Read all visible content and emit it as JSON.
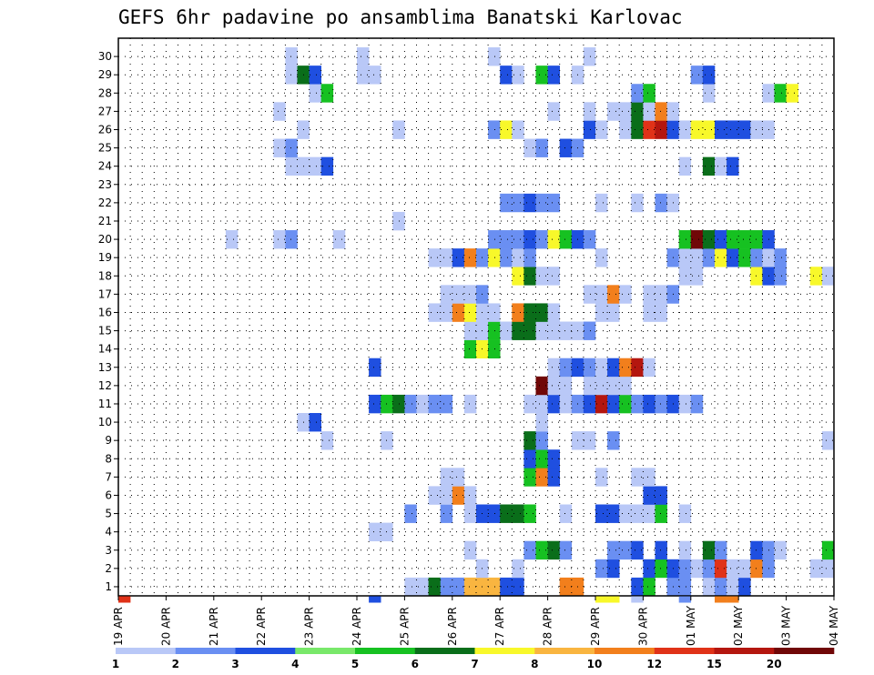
{
  "chart_data": {
    "type": "heatmap",
    "title": "GEFS 6hr padavine po ansamblima Banatski Karlovac",
    "xlabel": "",
    "ylabel": "",
    "x_tick_labels": [
      "19 APR",
      "20 APR",
      "21 APR",
      "22 APR",
      "23 APR",
      "24 APR",
      "25 APR",
      "26 APR",
      "27 APR",
      "28 APR",
      "29 APR",
      "30 APR",
      "01 MAY",
      "02 MAY",
      "03 MAY",
      "04 MAY"
    ],
    "y_tick_labels": [
      "1",
      "2",
      "3",
      "4",
      "5",
      "6",
      "7",
      "8",
      "9",
      "10",
      "11",
      "12",
      "13",
      "14",
      "15",
      "16",
      "17",
      "18",
      "19",
      "20",
      "21",
      "22",
      "23",
      "24",
      "25",
      "26",
      "27",
      "28",
      "29",
      "30"
    ],
    "steps_per_day": 4,
    "n_steps": 60,
    "grid": true,
    "colorbar": {
      "position": "bottom",
      "levels": [
        "1",
        "2",
        "3",
        "4",
        "5",
        "6",
        "7",
        "8",
        "10",
        "12",
        "15",
        "20"
      ],
      "colors": [
        "#b9c8f7",
        "#6a8ff2",
        "#1f4fe0",
        "#79e86a",
        "#16c121",
        "#0a6e1a",
        "#f8f82a",
        "#f9b540",
        "#f27f1c",
        "#e03218",
        "#b4160f",
        "#700707"
      ]
    },
    "values_note_units": "mm per 6h, color bin index 0-11",
    "cells": [
      [
        1,
        25,
        0
      ],
      [
        1,
        26,
        0
      ],
      [
        1,
        27,
        5
      ],
      [
        1,
        28,
        1
      ],
      [
        1,
        29,
        1
      ],
      [
        1,
        30,
        7
      ],
      [
        1,
        31,
        7
      ],
      [
        1,
        32,
        7
      ],
      [
        1,
        33,
        2
      ],
      [
        1,
        34,
        2
      ],
      [
        1,
        38,
        8
      ],
      [
        1,
        39,
        8
      ],
      [
        1,
        44,
        2
      ],
      [
        1,
        45,
        4
      ],
      [
        1,
        47,
        1
      ],
      [
        1,
        48,
        1
      ],
      [
        1,
        50,
        0
      ],
      [
        1,
        51,
        1
      ],
      [
        1,
        52,
        0
      ],
      [
        1,
        53,
        2
      ],
      [
        2,
        31,
        0
      ],
      [
        2,
        34,
        0
      ],
      [
        2,
        41,
        1
      ],
      [
        2,
        42,
        2
      ],
      [
        2,
        45,
        2
      ],
      [
        2,
        46,
        4
      ],
      [
        2,
        47,
        2
      ],
      [
        2,
        48,
        1
      ],
      [
        2,
        49,
        0
      ],
      [
        2,
        50,
        1
      ],
      [
        2,
        51,
        9
      ],
      [
        2,
        52,
        0
      ],
      [
        2,
        53,
        0
      ],
      [
        2,
        54,
        8
      ],
      [
        2,
        55,
        1
      ],
      [
        2,
        59,
        0
      ],
      [
        2,
        60,
        0
      ],
      [
        3,
        30,
        0
      ],
      [
        3,
        35,
        1
      ],
      [
        3,
        36,
        4
      ],
      [
        3,
        37,
        5
      ],
      [
        3,
        38,
        1
      ],
      [
        3,
        42,
        1
      ],
      [
        3,
        43,
        1
      ],
      [
        3,
        44,
        2
      ],
      [
        3,
        46,
        2
      ],
      [
        3,
        48,
        0
      ],
      [
        3,
        50,
        5
      ],
      [
        3,
        51,
        1
      ],
      [
        3,
        54,
        2
      ],
      [
        3,
        55,
        1
      ],
      [
        3,
        56,
        0
      ],
      [
        3,
        60,
        4
      ],
      [
        4,
        22,
        0
      ],
      [
        4,
        23,
        0
      ],
      [
        5,
        25,
        1
      ],
      [
        5,
        28,
        1
      ],
      [
        5,
        30,
        0
      ],
      [
        5,
        31,
        2
      ],
      [
        5,
        32,
        2
      ],
      [
        5,
        33,
        5
      ],
      [
        5,
        34,
        5
      ],
      [
        5,
        35,
        4
      ],
      [
        5,
        38,
        0
      ],
      [
        5,
        41,
        2
      ],
      [
        5,
        42,
        2
      ],
      [
        5,
        43,
        0
      ],
      [
        5,
        44,
        0
      ],
      [
        5,
        45,
        0
      ],
      [
        5,
        46,
        4
      ],
      [
        5,
        48,
        0
      ],
      [
        6,
        27,
        0
      ],
      [
        6,
        28,
        0
      ],
      [
        6,
        29,
        8
      ],
      [
        6,
        30,
        0
      ],
      [
        6,
        45,
        2
      ],
      [
        6,
        46,
        2
      ],
      [
        7,
        28,
        0
      ],
      [
        7,
        29,
        0
      ],
      [
        7,
        35,
        4
      ],
      [
        7,
        36,
        8
      ],
      [
        7,
        37,
        2
      ],
      [
        7,
        41,
        0
      ],
      [
        7,
        44,
        0
      ],
      [
        7,
        45,
        0
      ],
      [
        8,
        35,
        2
      ],
      [
        8,
        36,
        4
      ],
      [
        8,
        37,
        2
      ],
      [
        9,
        18,
        0
      ],
      [
        9,
        23,
        0
      ],
      [
        9,
        35,
        5
      ],
      [
        9,
        36,
        1
      ],
      [
        9,
        39,
        0
      ],
      [
        9,
        40,
        0
      ],
      [
        9,
        42,
        1
      ],
      [
        9,
        60,
        0
      ],
      [
        10,
        16,
        0
      ],
      [
        10,
        17,
        2
      ],
      [
        10,
        36,
        0
      ],
      [
        11,
        22,
        2
      ],
      [
        11,
        23,
        4
      ],
      [
        11,
        24,
        5
      ],
      [
        11,
        25,
        1
      ],
      [
        11,
        26,
        0
      ],
      [
        11,
        27,
        1
      ],
      [
        11,
        28,
        1
      ],
      [
        11,
        30,
        0
      ],
      [
        11,
        35,
        0
      ],
      [
        11,
        36,
        0
      ],
      [
        11,
        37,
        2
      ],
      [
        11,
        38,
        0
      ],
      [
        11,
        39,
        1
      ],
      [
        11,
        40,
        2
      ],
      [
        11,
        41,
        10
      ],
      [
        11,
        42,
        2
      ],
      [
        11,
        43,
        4
      ],
      [
        11,
        44,
        1
      ],
      [
        11,
        45,
        2
      ],
      [
        11,
        46,
        1
      ],
      [
        11,
        47,
        2
      ],
      [
        11,
        48,
        0
      ],
      [
        11,
        49,
        1
      ],
      [
        12,
        36,
        11
      ],
      [
        12,
        37,
        0
      ],
      [
        12,
        38,
        0
      ],
      [
        12,
        40,
        0
      ],
      [
        12,
        41,
        0
      ],
      [
        12,
        42,
        0
      ],
      [
        12,
        43,
        0
      ],
      [
        13,
        22,
        2
      ],
      [
        13,
        37,
        0
      ],
      [
        13,
        38,
        1
      ],
      [
        13,
        39,
        2
      ],
      [
        13,
        40,
        1
      ],
      [
        13,
        41,
        0
      ],
      [
        13,
        42,
        2
      ],
      [
        13,
        43,
        8
      ],
      [
        13,
        44,
        10
      ],
      [
        13,
        45,
        0
      ],
      [
        14,
        30,
        4
      ],
      [
        14,
        31,
        6
      ],
      [
        14,
        32,
        4
      ],
      [
        15,
        30,
        0
      ],
      [
        15,
        31,
        0
      ],
      [
        15,
        32,
        4
      ],
      [
        15,
        33,
        0
      ],
      [
        15,
        34,
        5
      ],
      [
        15,
        35,
        5
      ],
      [
        15,
        36,
        0
      ],
      [
        15,
        37,
        0
      ],
      [
        15,
        38,
        0
      ],
      [
        15,
        39,
        0
      ],
      [
        15,
        40,
        1
      ],
      [
        16,
        27,
        0
      ],
      [
        16,
        28,
        0
      ],
      [
        16,
        29,
        8
      ],
      [
        16,
        30,
        6
      ],
      [
        16,
        31,
        0
      ],
      [
        16,
        32,
        0
      ],
      [
        16,
        34,
        8
      ],
      [
        16,
        35,
        5
      ],
      [
        16,
        36,
        5
      ],
      [
        16,
        37,
        0
      ],
      [
        16,
        41,
        0
      ],
      [
        16,
        42,
        0
      ],
      [
        16,
        45,
        0
      ],
      [
        16,
        46,
        0
      ],
      [
        17,
        28,
        0
      ],
      [
        17,
        29,
        0
      ],
      [
        17,
        30,
        0
      ],
      [
        17,
        31,
        1
      ],
      [
        17,
        40,
        0
      ],
      [
        17,
        41,
        0
      ],
      [
        17,
        42,
        8
      ],
      [
        17,
        43,
        0
      ],
      [
        17,
        45,
        0
      ],
      [
        17,
        46,
        0
      ],
      [
        17,
        47,
        1
      ],
      [
        18,
        34,
        6
      ],
      [
        18,
        35,
        5
      ],
      [
        18,
        36,
        0
      ],
      [
        18,
        37,
        0
      ],
      [
        18,
        48,
        0
      ],
      [
        18,
        49,
        0
      ],
      [
        18,
        54,
        6
      ],
      [
        18,
        55,
        2
      ],
      [
        18,
        56,
        1
      ],
      [
        18,
        59,
        6
      ],
      [
        18,
        60,
        0
      ],
      [
        19,
        27,
        0
      ],
      [
        19,
        28,
        0
      ],
      [
        19,
        29,
        2
      ],
      [
        19,
        30,
        8
      ],
      [
        19,
        31,
        1
      ],
      [
        19,
        32,
        6
      ],
      [
        19,
        33,
        1
      ],
      [
        19,
        34,
        0
      ],
      [
        19,
        35,
        1
      ],
      [
        19,
        41,
        0
      ],
      [
        19,
        47,
        1
      ],
      [
        19,
        48,
        0
      ],
      [
        19,
        49,
        0
      ],
      [
        19,
        50,
        1
      ],
      [
        19,
        51,
        6
      ],
      [
        19,
        52,
        2
      ],
      [
        19,
        53,
        4
      ],
      [
        19,
        54,
        1
      ],
      [
        19,
        55,
        0
      ],
      [
        19,
        56,
        1
      ],
      [
        20,
        10,
        0
      ],
      [
        20,
        14,
        0
      ],
      [
        20,
        15,
        1
      ],
      [
        20,
        19,
        0
      ],
      [
        20,
        32,
        1
      ],
      [
        20,
        33,
        1
      ],
      [
        20,
        34,
        1
      ],
      [
        20,
        35,
        2
      ],
      [
        20,
        36,
        1
      ],
      [
        20,
        37,
        6
      ],
      [
        20,
        38,
        4
      ],
      [
        20,
        39,
        2
      ],
      [
        20,
        40,
        1
      ],
      [
        20,
        48,
        4
      ],
      [
        20,
        49,
        11
      ],
      [
        20,
        50,
        5
      ],
      [
        20,
        51,
        2
      ],
      [
        20,
        52,
        4
      ],
      [
        20,
        53,
        4
      ],
      [
        20,
        54,
        4
      ],
      [
        20,
        55,
        2
      ],
      [
        21,
        24,
        0
      ],
      [
        22,
        33,
        1
      ],
      [
        22,
        34,
        1
      ],
      [
        22,
        35,
        2
      ],
      [
        22,
        36,
        1
      ],
      [
        22,
        37,
        1
      ],
      [
        22,
        41,
        0
      ],
      [
        22,
        44,
        0
      ],
      [
        22,
        46,
        1
      ],
      [
        22,
        47,
        0
      ],
      [
        24,
        15,
        0
      ],
      [
        24,
        16,
        0
      ],
      [
        24,
        17,
        0
      ],
      [
        24,
        18,
        2
      ],
      [
        24,
        48,
        0
      ],
      [
        24,
        50,
        5
      ],
      [
        24,
        51,
        0
      ],
      [
        24,
        52,
        2
      ],
      [
        25,
        14,
        0
      ],
      [
        25,
        15,
        1
      ],
      [
        25,
        35,
        0
      ],
      [
        25,
        36,
        1
      ],
      [
        25,
        38,
        2
      ],
      [
        25,
        39,
        1
      ],
      [
        26,
        16,
        0
      ],
      [
        26,
        24,
        0
      ],
      [
        26,
        32,
        1
      ],
      [
        26,
        33,
        6
      ],
      [
        26,
        34,
        0
      ],
      [
        26,
        40,
        2
      ],
      [
        26,
        41,
        0
      ],
      [
        26,
        43,
        0
      ],
      [
        26,
        44,
        5
      ],
      [
        26,
        45,
        9
      ],
      [
        26,
        46,
        10
      ],
      [
        26,
        47,
        2
      ],
      [
        26,
        48,
        0
      ],
      [
        26,
        49,
        6
      ],
      [
        26,
        50,
        6
      ],
      [
        26,
        51,
        2
      ],
      [
        26,
        52,
        2
      ],
      [
        26,
        53,
        2
      ],
      [
        26,
        54,
        0
      ],
      [
        26,
        55,
        0
      ],
      [
        27,
        14,
        0
      ],
      [
        27,
        37,
        0
      ],
      [
        27,
        40,
        0
      ],
      [
        27,
        42,
        0
      ],
      [
        27,
        43,
        0
      ],
      [
        27,
        44,
        5
      ],
      [
        27,
        45,
        0
      ],
      [
        27,
        46,
        8
      ],
      [
        27,
        47,
        0
      ],
      [
        28,
        17,
        0
      ],
      [
        28,
        18,
        4
      ],
      [
        28,
        44,
        1
      ],
      [
        28,
        45,
        4
      ],
      [
        28,
        50,
        0
      ],
      [
        28,
        55,
        0
      ],
      [
        28,
        56,
        4
      ],
      [
        28,
        57,
        6
      ],
      [
        29,
        15,
        0
      ],
      [
        29,
        16,
        5
      ],
      [
        29,
        17,
        2
      ],
      [
        29,
        21,
        0
      ],
      [
        29,
        22,
        0
      ],
      [
        29,
        33,
        2
      ],
      [
        29,
        34,
        0
      ],
      [
        29,
        36,
        4
      ],
      [
        29,
        37,
        2
      ],
      [
        29,
        39,
        0
      ],
      [
        29,
        49,
        1
      ],
      [
        29,
        50,
        2
      ],
      [
        30,
        15,
        0
      ],
      [
        30,
        21,
        0
      ],
      [
        30,
        32,
        0
      ],
      [
        30,
        40,
        0
      ]
    ],
    "below_axis_marks": [
      [
        0,
        9
      ],
      [
        21,
        2
      ],
      [
        40,
        6
      ],
      [
        41,
        6
      ],
      [
        43,
        0
      ],
      [
        47,
        1
      ],
      [
        50,
        8
      ],
      [
        51,
        8
      ]
    ]
  }
}
